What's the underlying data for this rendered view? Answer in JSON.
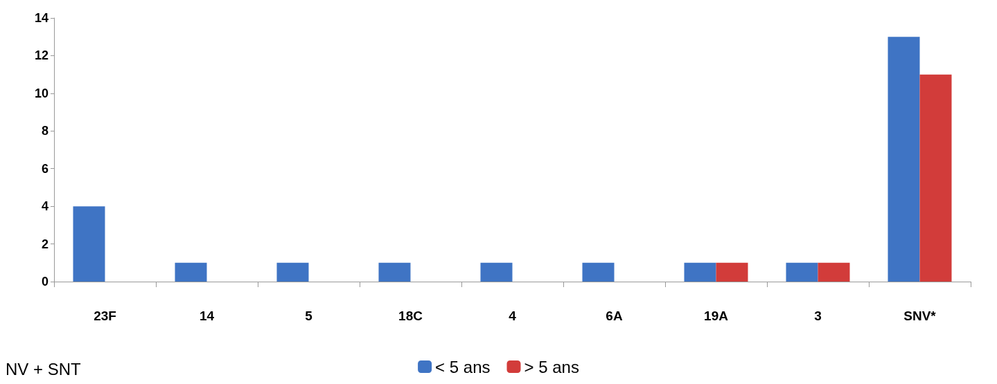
{
  "chart_data": {
    "type": "bar",
    "categories": [
      "23F",
      "14",
      "5",
      "18C",
      "4",
      "6A",
      "19A",
      "3",
      "SNV*"
    ],
    "series": [
      {
        "name": "< 5 ans",
        "color": "#3f74c4",
        "values": [
          4,
          1,
          1,
          1,
          1,
          1,
          1,
          1,
          13
        ]
      },
      {
        "name": "> 5 ans",
        "color": "#d23c3a",
        "values": [
          0,
          0,
          0,
          0,
          0,
          0,
          1,
          1,
          11
        ]
      }
    ],
    "ylim": [
      0,
      14
    ],
    "yticks": [
      0,
      2,
      4,
      6,
      8,
      10,
      12,
      14
    ],
    "grid": false,
    "legend": "bottom",
    "annotations": [
      "NV + SNT"
    ]
  }
}
